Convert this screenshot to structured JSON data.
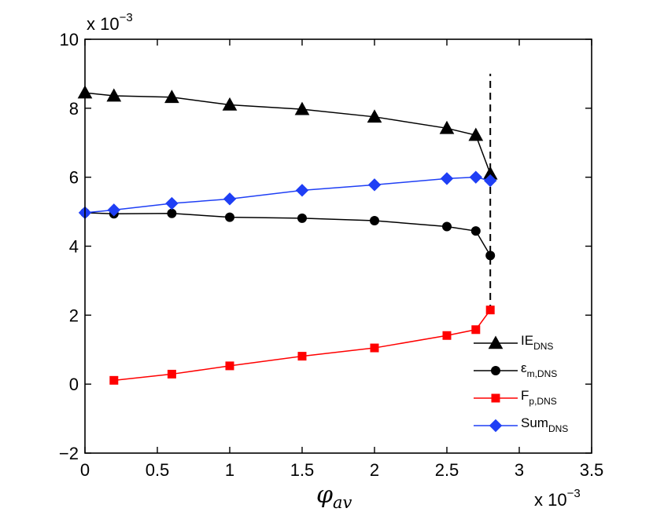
{
  "chart_data": {
    "type": "line",
    "xlabel": {
      "base": "φ",
      "sub": "av"
    },
    "ylabel": "",
    "xlim": [
      0,
      0.0035
    ],
    "ylim": [
      -0.002,
      0.01
    ],
    "grid": false,
    "legend_position": "bottom-right",
    "x_scale_label": {
      "prefix": "x 10",
      "exp": "−3"
    },
    "y_scale_label": {
      "prefix": "x 10",
      "exp": "−3"
    },
    "x_ticks": [
      0,
      0.0005,
      0.001,
      0.0015,
      0.002,
      0.0025,
      0.003,
      0.0035
    ],
    "x_tick_labels": [
      "0",
      "0.5",
      "1",
      "1.5",
      "2",
      "2.5",
      "3",
      "3.5"
    ],
    "y_ticks": [
      -0.002,
      0,
      0.002,
      0.004,
      0.006,
      0.008,
      0.01
    ],
    "y_tick_labels": [
      "−2",
      "0",
      "2",
      "4",
      "6",
      "8",
      "10"
    ],
    "series": [
      {
        "name": "IE",
        "sub": "DNS",
        "color": "#000000",
        "marker": "triangle",
        "x": [
          0,
          0.0002,
          0.0006,
          0.001,
          0.0015,
          0.002,
          0.0025,
          0.0027,
          0.0028
        ],
        "values": [
          0.00845,
          0.00836,
          0.00832,
          0.0081,
          0.00797,
          0.00775,
          0.00742,
          0.00722,
          0.0061
        ]
      },
      {
        "name": "ε",
        "sub": "m,DNS",
        "color": "#000000",
        "marker": "circle",
        "x": [
          0,
          0.0002,
          0.0006,
          0.001,
          0.0015,
          0.002,
          0.0025,
          0.0027,
          0.0028
        ],
        "values": [
          0.00497,
          0.00494,
          0.00495,
          0.00484,
          0.00481,
          0.00474,
          0.00457,
          0.00444,
          0.00373
        ]
      },
      {
        "name": "F",
        "sub": "p,DNS",
        "color": "#ff0000",
        "marker": "square",
        "x": [
          0.0002,
          0.0006,
          0.001,
          0.0015,
          0.002,
          0.0025,
          0.0027,
          0.0028
        ],
        "values": [
          0.00011,
          0.00029,
          0.00053,
          0.00081,
          0.00105,
          0.00141,
          0.00158,
          0.00215
        ]
      },
      {
        "name": "Sum",
        "sub": "DNS",
        "color": "#1f3ff5",
        "marker": "diamond",
        "x": [
          0,
          0.0002,
          0.0006,
          0.001,
          0.0015,
          0.002,
          0.0025,
          0.0027,
          0.0028
        ],
        "values": [
          0.00497,
          0.00505,
          0.00524,
          0.00537,
          0.00562,
          0.00578,
          0.00596,
          0.006,
          0.0059
        ]
      }
    ],
    "vertical_line": {
      "x": 0.0028,
      "y_range": [
        0.0021,
        0.009
      ],
      "style": "dashed",
      "color": "#000000"
    }
  }
}
